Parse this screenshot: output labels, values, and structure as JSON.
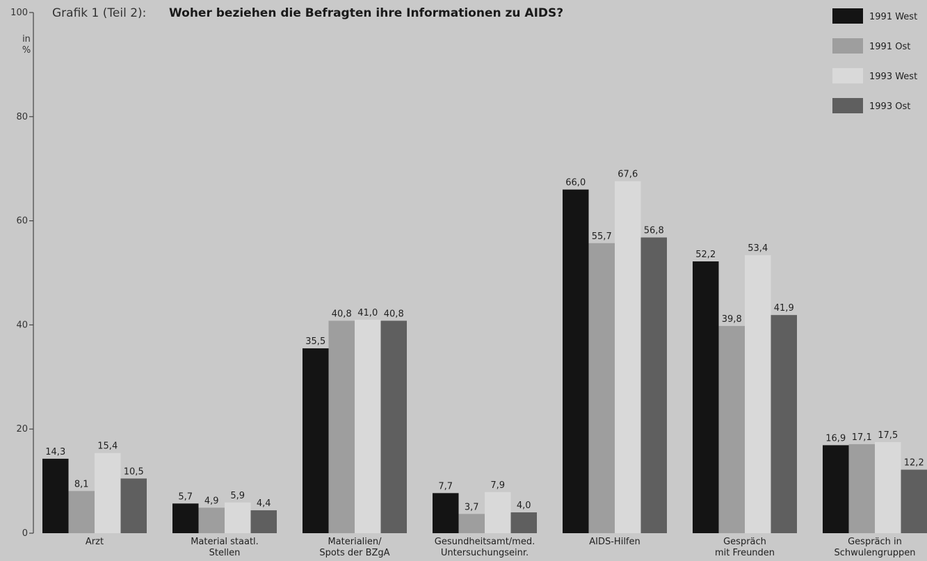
{
  "chart_data": {
    "type": "bar",
    "title_prefix": "Grafik 1 (Teil 2):",
    "title": "Woher beziehen die Befragten ihre Informationen zu AIDS?",
    "ylabel_lines": [
      "in",
      "%"
    ],
    "ylim": [
      0,
      100
    ],
    "yticks": [
      0,
      20,
      40,
      60,
      80,
      100
    ],
    "grid": false,
    "legend_position": "top-right",
    "categories": [
      [
        "Arzt"
      ],
      [
        "Material staatl.",
        "Stellen"
      ],
      [
        "Materialien/",
        "Spots der BZgA"
      ],
      [
        "Gesundheitsamt/med.",
        "Untersuchungseinr."
      ],
      [
        "AIDS-Hilfen"
      ],
      [
        "Gespräch",
        "mit Freunden"
      ],
      [
        "Gespräch in",
        "Schwulengruppen"
      ]
    ],
    "series": [
      {
        "name": "1991 West",
        "color": "#141414",
        "values": [
          14.3,
          5.7,
          35.5,
          7.7,
          66.0,
          52.2,
          16.9
        ],
        "labels": [
          "14,3",
          "5,7",
          "35,5",
          "7,7",
          "66,0",
          "52,2",
          "16,9"
        ]
      },
      {
        "name": "1991 Ost",
        "color": "#9e9e9e",
        "values": [
          8.1,
          4.9,
          40.8,
          3.7,
          55.7,
          39.8,
          17.1
        ],
        "labels": [
          "8,1",
          "4,9",
          "40,8",
          "3,7",
          "55,7",
          "39,8",
          "17,1"
        ]
      },
      {
        "name": "1993 West",
        "color": "#d9d9d9",
        "values": [
          15.4,
          5.9,
          41.0,
          7.9,
          67.6,
          53.4,
          17.5
        ],
        "labels": [
          "15,4",
          "5,9",
          "41,0",
          "7,9",
          "67,6",
          "53,4",
          "17,5"
        ]
      },
      {
        "name": "1993 Ost",
        "color": "#5f5f5f",
        "values": [
          10.5,
          4.4,
          40.8,
          4.0,
          56.8,
          41.9,
          12.2
        ],
        "labels": [
          "10,5",
          "4,4",
          "40,8",
          "4,0",
          "56,8",
          "41,9",
          "12,2"
        ]
      }
    ]
  }
}
